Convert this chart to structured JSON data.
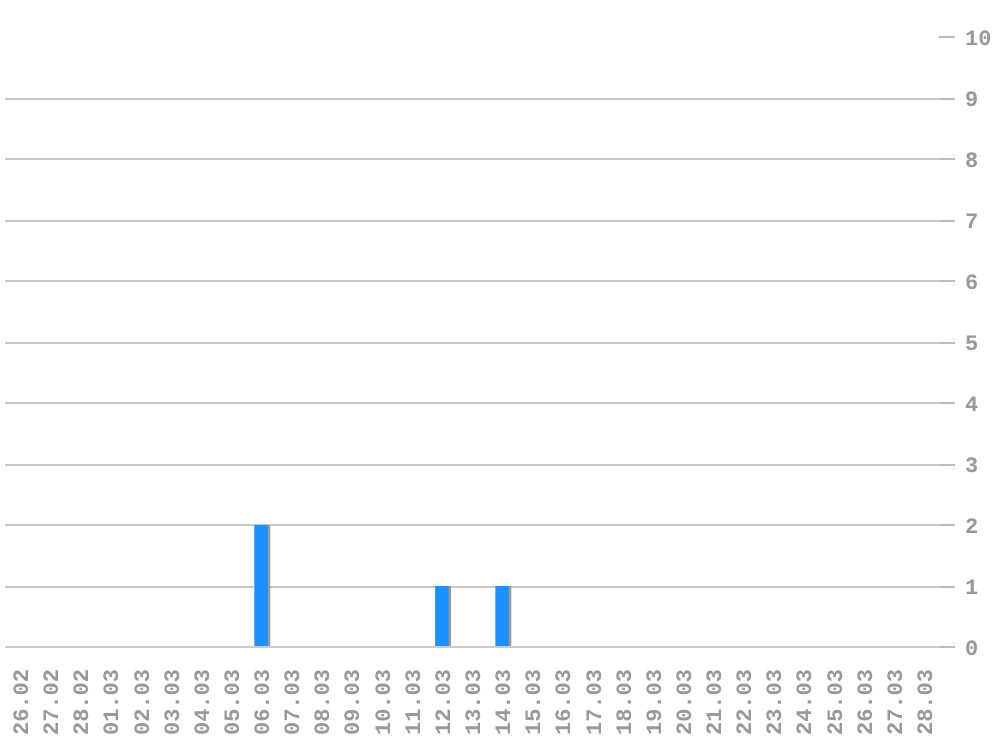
{
  "chart_data": {
    "type": "bar",
    "categories": [
      "26.02",
      "27.02",
      "28.02",
      "01.03",
      "02.03",
      "03.03",
      "04.03",
      "05.03",
      "06.03",
      "07.03",
      "08.03",
      "09.03",
      "10.03",
      "11.03",
      "12.03",
      "13.03",
      "14.03",
      "15.03",
      "16.03",
      "17.03",
      "18.03",
      "19.03",
      "20.03",
      "21.03",
      "22.03",
      "23.03",
      "24.03",
      "25.03",
      "26.03",
      "27.03",
      "28.03"
    ],
    "values": [
      0,
      0,
      0,
      0,
      0,
      0,
      0,
      0,
      2,
      0,
      0,
      0,
      0,
      0,
      1,
      0,
      1,
      0,
      0,
      0,
      0,
      0,
      0,
      0,
      0,
      0,
      0,
      0,
      0,
      0,
      0
    ],
    "color": "#1e90ff",
    "ylim": [
      0,
      10
    ],
    "yticks": [
      0,
      1,
      2,
      3,
      4,
      5,
      6,
      7,
      8,
      9,
      10
    ],
    "grid": "y"
  }
}
